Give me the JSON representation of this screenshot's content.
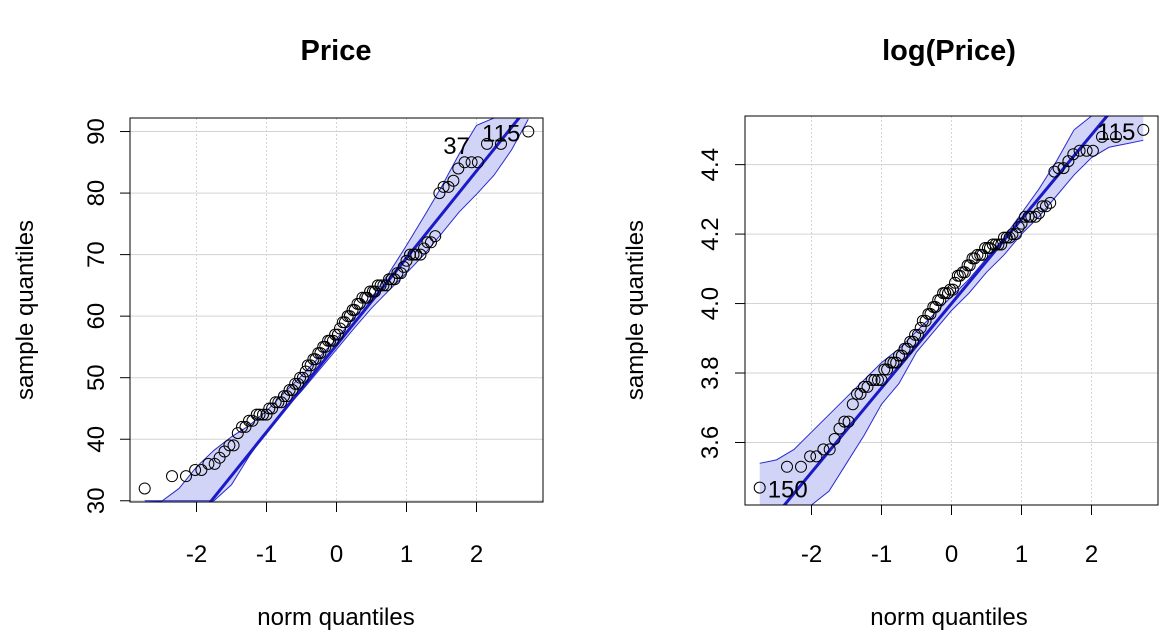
{
  "chart_data": [
    {
      "type": "scatter",
      "title": "Price",
      "xlabel": "norm quantiles",
      "ylabel": "sample quantiles",
      "xlim": [
        -2.95,
        2.95
      ],
      "ylim": [
        29.8,
        92.2
      ],
      "xticks": [
        -2,
        -1,
        0,
        1,
        2
      ],
      "xtick_labels": [
        "-2",
        "-1",
        "0",
        "1",
        "2"
      ],
      "yticks": [
        30,
        40,
        50,
        60,
        70,
        80,
        90
      ],
      "ytick_labels": [
        "30",
        "40",
        "50",
        "60",
        "70",
        "80",
        "90"
      ],
      "grid": true,
      "colors": {
        "line": "#1a1ac8",
        "band_fill": "#d2d4f7",
        "band_edge": "#2a2ad0",
        "points": "#000000",
        "grid": "#d3d3d3"
      },
      "reference_line": {
        "intercept": 55.3,
        "slope": 14.15
      },
      "envelope_lower": [
        [
          -2.74,
          30.0
        ],
        [
          -2.5,
          30.0
        ],
        [
          -2.25,
          30.0
        ],
        [
          -2.0,
          30.0
        ],
        [
          -1.75,
          30.0
        ],
        [
          -1.5,
          32.6
        ],
        [
          -1.25,
          37.2
        ],
        [
          -1.0,
          41.3
        ],
        [
          -0.75,
          44.7
        ],
        [
          -0.5,
          47.8
        ],
        [
          -0.25,
          51.2
        ],
        [
          0.0,
          54.6
        ],
        [
          0.25,
          58.0
        ],
        [
          0.5,
          61.3
        ],
        [
          0.75,
          64.2
        ],
        [
          1.0,
          67.0
        ],
        [
          1.25,
          70.0
        ],
        [
          1.5,
          73.4
        ],
        [
          1.75,
          76.9
        ],
        [
          2.0,
          79.8
        ],
        [
          2.25,
          82.9
        ],
        [
          2.5,
          87.0
        ],
        [
          2.74,
          92.0
        ]
      ],
      "envelope_upper": [
        [
          -2.74,
          29.8
        ],
        [
          -2.5,
          29.9
        ],
        [
          -2.25,
          32.0
        ],
        [
          -2.0,
          35.5
        ],
        [
          -1.75,
          38.2
        ],
        [
          -1.5,
          40.4
        ],
        [
          -1.25,
          42.2
        ],
        [
          -1.0,
          44.6
        ],
        [
          -0.75,
          47.5
        ],
        [
          -0.5,
          50.3
        ],
        [
          -0.25,
          53.3
        ],
        [
          0.0,
          56.3
        ],
        [
          0.25,
          59.7
        ],
        [
          0.5,
          63.0
        ],
        [
          0.75,
          67.0
        ],
        [
          1.0,
          71.5
        ],
        [
          1.25,
          76.2
        ],
        [
          1.5,
          81.0
        ],
        [
          1.75,
          86.3
        ],
        [
          2.0,
          91.0
        ],
        [
          2.25,
          92.2
        ],
        [
          2.5,
          92.2
        ],
        [
          2.74,
          92.2
        ]
      ],
      "points": {
        "x": [
          -2.74,
          -2.35,
          -2.15,
          -2.02,
          -1.93,
          -1.83,
          -1.74,
          -1.67,
          -1.6,
          -1.53,
          -1.47,
          -1.41,
          -1.35,
          -1.3,
          -1.25,
          -1.2,
          -1.14,
          -1.1,
          -1.05,
          -1.0,
          -0.96,
          -0.92,
          -0.87,
          -0.83,
          -0.79,
          -0.75,
          -0.71,
          -0.67,
          -0.63,
          -0.59,
          -0.55,
          -0.52,
          -0.48,
          -0.44,
          -0.41,
          -0.37,
          -0.33,
          -0.3,
          -0.26,
          -0.23,
          -0.19,
          -0.16,
          -0.12,
          -0.09,
          -0.05,
          -0.02,
          0.02,
          0.05,
          0.09,
          0.12,
          0.16,
          0.19,
          0.23,
          0.26,
          0.3,
          0.33,
          0.37,
          0.41,
          0.44,
          0.48,
          0.52,
          0.55,
          0.59,
          0.63,
          0.67,
          0.71,
          0.75,
          0.79,
          0.83,
          0.87,
          0.92,
          0.96,
          1.0,
          1.05,
          1.1,
          1.14,
          1.2,
          1.25,
          1.3,
          1.35,
          1.41,
          1.47,
          1.53,
          1.6,
          1.67,
          1.74,
          1.83,
          1.93,
          2.02,
          2.15,
          2.35,
          2.74
        ],
        "y": [
          32,
          34,
          34,
          35,
          35,
          36,
          36,
          37,
          38,
          39,
          39,
          41,
          42,
          42,
          43,
          43,
          44,
          44,
          44,
          44,
          45,
          45,
          46,
          46,
          46,
          47,
          47,
          48,
          48,
          49,
          49,
          50,
          50,
          51,
          52,
          52,
          53,
          53,
          54,
          54,
          55,
          55,
          56,
          56,
          56,
          57,
          57,
          58,
          59,
          59,
          60,
          60,
          61,
          61,
          62,
          62,
          63,
          63,
          63,
          64,
          64,
          64,
          65,
          65,
          65,
          65,
          66,
          66,
          66,
          67,
          67,
          68,
          69,
          70,
          70,
          70,
          70,
          71,
          72,
          72,
          73,
          80,
          81,
          81,
          82,
          84,
          85,
          85,
          85,
          88,
          88,
          90
        ]
      },
      "annotations": [
        {
          "text": "37",
          "x": 2.02,
          "y": 88
        },
        {
          "text": "115",
          "x": 2.74,
          "y": 90
        }
      ]
    },
    {
      "type": "scatter",
      "title": "log(Price)",
      "xlabel": "norm quantiles",
      "ylabel": "sample quantiles",
      "xlim": [
        -2.95,
        2.95
      ],
      "ylim": [
        3.42,
        4.54
      ],
      "xticks": [
        -2,
        -1,
        0,
        1,
        2
      ],
      "xtick_labels": [
        "-2",
        "-1",
        "0",
        "1",
        "2"
      ],
      "yticks": [
        3.6,
        3.8,
        4.0,
        4.2,
        4.4
      ],
      "ytick_labels": [
        "3.6",
        "3.8",
        "4.0",
        "4.2",
        "4.4"
      ],
      "grid": true,
      "colors": {
        "line": "#1a1ac8",
        "band_fill": "#d2d4f7",
        "band_edge": "#2a2ad0",
        "points": "#000000",
        "grid": "#d3d3d3"
      },
      "reference_line": {
        "intercept": 4.0,
        "slope": 0.243
      },
      "envelope_lower": [
        [
          -2.74,
          3.42
        ],
        [
          -2.5,
          3.42
        ],
        [
          -2.25,
          3.42
        ],
        [
          -2.0,
          3.42
        ],
        [
          -1.75,
          3.46
        ],
        [
          -1.5,
          3.54
        ],
        [
          -1.25,
          3.62
        ],
        [
          -1.0,
          3.71
        ],
        [
          -0.75,
          3.77
        ],
        [
          -0.5,
          3.86
        ],
        [
          -0.25,
          3.92
        ],
        [
          0.0,
          3.98
        ],
        [
          0.25,
          4.03
        ],
        [
          0.5,
          4.09
        ],
        [
          0.75,
          4.14
        ],
        [
          1.0,
          4.2
        ],
        [
          1.25,
          4.25
        ],
        [
          1.5,
          4.31
        ],
        [
          1.75,
          4.37
        ],
        [
          2.0,
          4.42
        ],
        [
          2.25,
          4.45
        ],
        [
          2.5,
          4.46
        ],
        [
          2.74,
          4.47
        ]
      ],
      "envelope_upper": [
        [
          -2.74,
          3.54
        ],
        [
          -2.5,
          3.55
        ],
        [
          -2.25,
          3.58
        ],
        [
          -2.0,
          3.63
        ],
        [
          -1.75,
          3.68
        ],
        [
          -1.5,
          3.73
        ],
        [
          -1.25,
          3.78
        ],
        [
          -1.0,
          3.83
        ],
        [
          -0.75,
          3.87
        ],
        [
          -0.5,
          3.92
        ],
        [
          -0.25,
          3.97
        ],
        [
          0.0,
          4.02
        ],
        [
          0.25,
          4.07
        ],
        [
          0.5,
          4.13
        ],
        [
          0.75,
          4.19
        ],
        [
          1.0,
          4.26
        ],
        [
          1.25,
          4.33
        ],
        [
          1.5,
          4.41
        ],
        [
          1.75,
          4.5
        ],
        [
          2.0,
          4.54
        ],
        [
          2.25,
          4.54
        ],
        [
          2.5,
          4.54
        ],
        [
          2.74,
          4.54
        ]
      ],
      "points": {
        "x": [
          -2.74,
          -2.35,
          -2.15,
          -2.02,
          -1.93,
          -1.83,
          -1.74,
          -1.67,
          -1.6,
          -1.53,
          -1.47,
          -1.41,
          -1.35,
          -1.3,
          -1.25,
          -1.2,
          -1.14,
          -1.1,
          -1.05,
          -1.0,
          -0.96,
          -0.92,
          -0.87,
          -0.83,
          -0.79,
          -0.75,
          -0.71,
          -0.67,
          -0.63,
          -0.59,
          -0.55,
          -0.52,
          -0.48,
          -0.44,
          -0.41,
          -0.37,
          -0.33,
          -0.3,
          -0.26,
          -0.23,
          -0.19,
          -0.16,
          -0.12,
          -0.09,
          -0.05,
          -0.02,
          0.02,
          0.05,
          0.09,
          0.12,
          0.16,
          0.19,
          0.23,
          0.26,
          0.3,
          0.33,
          0.37,
          0.41,
          0.44,
          0.48,
          0.52,
          0.55,
          0.59,
          0.63,
          0.67,
          0.71,
          0.75,
          0.79,
          0.83,
          0.87,
          0.92,
          0.96,
          1.0,
          1.05,
          1.1,
          1.14,
          1.2,
          1.25,
          1.3,
          1.35,
          1.41,
          1.47,
          1.53,
          1.6,
          1.67,
          1.74,
          1.83,
          1.93,
          2.02,
          2.15,
          2.35,
          2.74
        ],
        "y": [
          3.47,
          3.53,
          3.53,
          3.56,
          3.56,
          3.58,
          3.58,
          3.61,
          3.64,
          3.66,
          3.66,
          3.71,
          3.74,
          3.74,
          3.76,
          3.76,
          3.78,
          3.78,
          3.78,
          3.78,
          3.81,
          3.81,
          3.83,
          3.83,
          3.83,
          3.85,
          3.85,
          3.87,
          3.87,
          3.89,
          3.89,
          3.91,
          3.91,
          3.93,
          3.95,
          3.95,
          3.97,
          3.97,
          3.99,
          3.99,
          4.01,
          4.01,
          4.03,
          4.03,
          4.03,
          4.04,
          4.04,
          4.06,
          4.08,
          4.08,
          4.09,
          4.09,
          4.11,
          4.11,
          4.13,
          4.13,
          4.14,
          4.14,
          4.14,
          4.16,
          4.16,
          4.16,
          4.17,
          4.17,
          4.17,
          4.17,
          4.19,
          4.19,
          4.19,
          4.2,
          4.2,
          4.22,
          4.23,
          4.25,
          4.25,
          4.25,
          4.25,
          4.26,
          4.28,
          4.28,
          4.29,
          4.38,
          4.39,
          4.39,
          4.41,
          4.43,
          4.44,
          4.44,
          4.44,
          4.48,
          4.48,
          4.5
        ]
      },
      "annotations": [
        {
          "text": "150",
          "x": -2.74,
          "y": 3.47
        },
        {
          "text": "115",
          "x": 2.74,
          "y": 4.5
        }
      ]
    }
  ]
}
